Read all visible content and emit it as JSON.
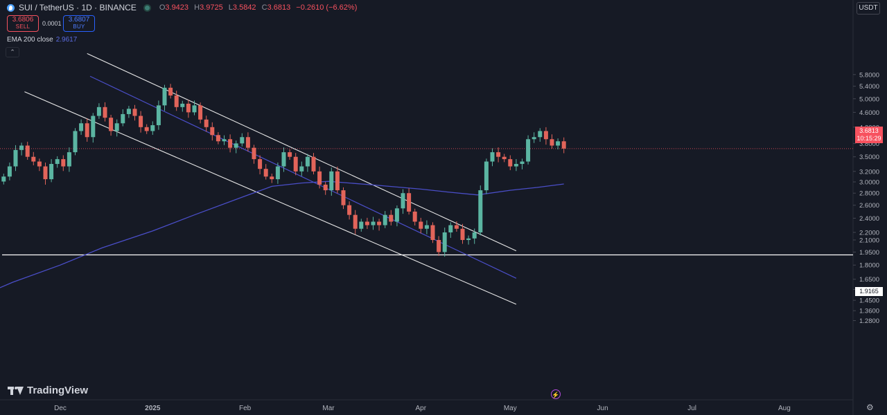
{
  "header": {
    "title": "SUI / TetherUS · 1D · BINANCE",
    "ohlc": [
      {
        "label": "O",
        "value": "3.9423"
      },
      {
        "label": "H",
        "value": "3.9725"
      },
      {
        "label": "L",
        "value": "3.5842"
      },
      {
        "label": "C",
        "value": "3.6813"
      },
      {
        "label": "",
        "value": "−0.2610 (−6.62%)"
      }
    ]
  },
  "trade": {
    "sell_price": "3.6806",
    "sell_label": "SELL",
    "spread": "0.0001",
    "buy_price": "3.6807",
    "buy_label": "BUY"
  },
  "indicator": {
    "label": "EMA 200 close",
    "value": "2.9617"
  },
  "collapse_icon": "chevron-up-icon",
  "axis_currency": "USDT",
  "last_price": {
    "value": "3.6813",
    "countdown": "10:15:29"
  },
  "hline_price": "1.9165",
  "watermark": "TradingView",
  "colors": {
    "background": "#161a25",
    "up": "#5bb5a2",
    "down": "#e2645a",
    "ema": "#4a4ec8",
    "channel": "#e8e8e8",
    "hline": "#ffffff",
    "last": "#f7525f"
  },
  "chart_data": {
    "type": "candlestick",
    "scale": "log",
    "y_ticks": [
      "5.8000",
      "5.4000",
      "5.0000",
      "4.6000",
      "4.2000",
      "3.8000",
      "3.5000",
      "3.2000",
      "3.0000",
      "2.8000",
      "2.6000",
      "2.4000",
      "2.2000",
      "2.1000",
      "1.9500",
      "1.8000",
      "1.6500",
      "1.5500",
      "1.4500",
      "1.3600",
      "1.2800"
    ],
    "x_ticks": [
      {
        "date": "2024-12-01",
        "label": "Dec"
      },
      {
        "date": "2025-01-01",
        "label": "2025"
      },
      {
        "date": "2025-02-01",
        "label": "Feb"
      },
      {
        "date": "2025-03-01",
        "label": "Mar"
      },
      {
        "date": "2025-04-01",
        "label": "Apr"
      },
      {
        "date": "2025-05-01",
        "label": "May"
      },
      {
        "date": "2025-06-01",
        "label": "Jun"
      },
      {
        "date": "2025-07-01",
        "label": "Jul"
      },
      {
        "date": "2025-08-01",
        "label": "Aug"
      }
    ],
    "closes": [
      [
        "2024-11-12",
        3.1
      ],
      [
        "2024-11-14",
        3.3
      ],
      [
        "2024-11-16",
        3.65
      ],
      [
        "2024-11-18",
        3.75
      ],
      [
        "2024-11-20",
        3.5
      ],
      [
        "2024-11-22",
        3.4
      ],
      [
        "2024-11-24",
        3.3
      ],
      [
        "2024-11-26",
        3.05
      ],
      [
        "2024-11-28",
        3.35
      ],
      [
        "2024-11-30",
        3.45
      ],
      [
        "2024-12-02",
        3.3
      ],
      [
        "2024-12-04",
        3.6
      ],
      [
        "2024-12-06",
        4.1
      ],
      [
        "2024-12-08",
        4.3
      ],
      [
        "2024-12-10",
        3.95
      ],
      [
        "2024-12-12",
        4.5
      ],
      [
        "2024-12-14",
        4.75
      ],
      [
        "2024-12-16",
        4.45
      ],
      [
        "2024-12-18",
        4.1
      ],
      [
        "2024-12-20",
        4.3
      ],
      [
        "2024-12-22",
        4.55
      ],
      [
        "2024-12-24",
        4.7
      ],
      [
        "2024-12-26",
        4.5
      ],
      [
        "2024-12-28",
        4.2
      ],
      [
        "2024-12-30",
        4.1
      ],
      [
        "2025-01-01",
        4.25
      ],
      [
        "2025-01-03",
        4.8
      ],
      [
        "2025-01-05",
        5.35
      ],
      [
        "2025-01-07",
        5.1
      ],
      [
        "2025-01-09",
        4.75
      ],
      [
        "2025-01-11",
        4.85
      ],
      [
        "2025-01-13",
        4.6
      ],
      [
        "2025-01-15",
        4.8
      ],
      [
        "2025-01-17",
        4.4
      ],
      [
        "2025-01-19",
        4.2
      ],
      [
        "2025-01-21",
        4.0
      ],
      [
        "2025-01-23",
        3.85
      ],
      [
        "2025-01-25",
        3.9
      ],
      [
        "2025-01-27",
        3.7
      ],
      [
        "2025-01-29",
        3.8
      ],
      [
        "2025-01-31",
        3.95
      ],
      [
        "2025-02-02",
        3.7
      ],
      [
        "2025-02-04",
        3.45
      ],
      [
        "2025-02-06",
        3.25
      ],
      [
        "2025-02-08",
        3.1
      ],
      [
        "2025-02-10",
        3.05
      ],
      [
        "2025-02-12",
        3.3
      ],
      [
        "2025-02-14",
        3.6
      ],
      [
        "2025-02-16",
        3.5
      ],
      [
        "2025-02-18",
        3.2
      ],
      [
        "2025-02-20",
        3.3
      ],
      [
        "2025-02-22",
        3.5
      ],
      [
        "2025-02-24",
        3.2
      ],
      [
        "2025-02-26",
        2.95
      ],
      [
        "2025-02-28",
        2.85
      ],
      [
        "2025-03-02",
        3.2
      ],
      [
        "2025-03-04",
        2.85
      ],
      [
        "2025-03-06",
        2.6
      ],
      [
        "2025-03-08",
        2.45
      ],
      [
        "2025-03-10",
        2.25
      ],
      [
        "2025-03-12",
        2.35
      ],
      [
        "2025-03-14",
        2.3
      ],
      [
        "2025-03-16",
        2.35
      ],
      [
        "2025-03-18",
        2.3
      ],
      [
        "2025-03-20",
        2.45
      ],
      [
        "2025-03-22",
        2.35
      ],
      [
        "2025-03-24",
        2.55
      ],
      [
        "2025-03-26",
        2.8
      ],
      [
        "2025-03-28",
        2.5
      ],
      [
        "2025-03-30",
        2.35
      ],
      [
        "2025-04-01",
        2.25
      ],
      [
        "2025-04-03",
        2.3
      ],
      [
        "2025-04-05",
        2.1
      ],
      [
        "2025-04-07",
        1.95
      ],
      [
        "2025-04-09",
        2.2
      ],
      [
        "2025-04-11",
        2.3
      ],
      [
        "2025-04-13",
        2.25
      ],
      [
        "2025-04-15",
        2.1
      ],
      [
        "2025-04-17",
        2.12
      ],
      [
        "2025-04-19",
        2.2
      ],
      [
        "2025-04-21",
        2.85
      ],
      [
        "2025-04-23",
        3.4
      ],
      [
        "2025-04-25",
        3.6
      ],
      [
        "2025-04-27",
        3.5
      ],
      [
        "2025-04-29",
        3.45
      ],
      [
        "2025-05-01",
        3.3
      ],
      [
        "2025-05-03",
        3.35
      ],
      [
        "2025-05-05",
        3.4
      ],
      [
        "2025-05-07",
        3.9
      ],
      [
        "2025-05-09",
        3.95
      ],
      [
        "2025-05-11",
        4.1
      ],
      [
        "2025-05-13",
        3.9
      ],
      [
        "2025-05-15",
        3.75
      ],
      [
        "2025-05-17",
        3.85
      ],
      [
        "2025-05-19",
        3.6813
      ]
    ],
    "ema200": [
      [
        "2024-11-01",
        1.45
      ],
      [
        "2024-11-15",
        1.62
      ],
      [
        "2024-12-01",
        1.8
      ],
      [
        "2024-12-15",
        2.0
      ],
      [
        "2025-01-01",
        2.22
      ],
      [
        "2025-01-15",
        2.45
      ],
      [
        "2025-02-01",
        2.75
      ],
      [
        "2025-02-10",
        2.92
      ],
      [
        "2025-02-20",
        2.98
      ],
      [
        "2025-03-01",
        3.01
      ],
      [
        "2025-03-15",
        2.95
      ],
      [
        "2025-04-01",
        2.87
      ],
      [
        "2025-04-10",
        2.82
      ],
      [
        "2025-04-20",
        2.77
      ],
      [
        "2025-05-01",
        2.85
      ],
      [
        "2025-05-10",
        2.9
      ],
      [
        "2025-05-19",
        2.9617
      ]
    ],
    "channel_lines": [
      {
        "name": "upper",
        "start": [
          "2024-12-10",
          6.6
        ],
        "end": [
          "2025-05-03",
          1.965
        ]
      },
      {
        "name": "lower",
        "start": [
          "2024-11-19",
          5.22
        ],
        "end": [
          "2025-05-03",
          1.415
        ]
      },
      {
        "name": "mid",
        "start": [
          "2024-12-11",
          5.74
        ],
        "end": [
          "2025-05-03",
          1.66
        ]
      }
    ],
    "hline": 1.9165
  }
}
